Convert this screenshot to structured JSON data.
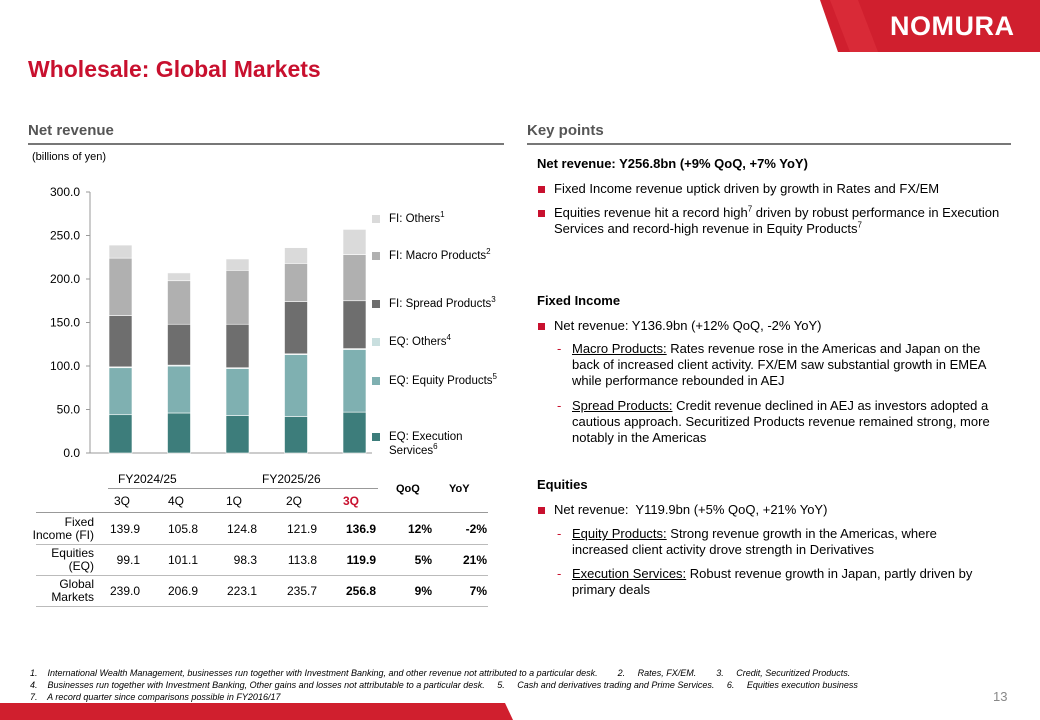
{
  "brand": {
    "logo_text": "NOMURA",
    "accent": "#c8102e"
  },
  "title": "Wholesale: Global Markets",
  "left": {
    "heading": "Net revenue",
    "units": "(billions of yen)"
  },
  "chart_data": {
    "type": "bar",
    "stacked": true,
    "categories": [
      "3Q FY2024/25",
      "4Q FY2024/25",
      "1Q FY2025/26",
      "2Q FY2025/26",
      "3Q FY2025/26"
    ],
    "ylim": [
      0,
      300
    ],
    "yticks": [
      "300.0",
      "250.0",
      "200.0",
      "150.0",
      "100.0",
      "50.0",
      "0.0"
    ],
    "series": [
      {
        "name": "EQ: Execution Services",
        "sup": "6",
        "color": "#3d7d7b",
        "values": [
          44,
          46,
          43,
          42,
          47
        ]
      },
      {
        "name": "EQ: Equity Products",
        "sup": "5",
        "color": "#7fb0b1",
        "values": [
          54,
          54,
          54,
          71,
          72
        ]
      },
      {
        "name": "EQ: Others",
        "sup": "4",
        "color": "#c9dfdf",
        "values": [
          1,
          1,
          1,
          1,
          1
        ]
      },
      {
        "name": "FI: Spread Products",
        "sup": "3",
        "color": "#6e6e6e",
        "values": [
          59,
          47,
          50,
          60,
          55
        ]
      },
      {
        "name": "FI: Macro Products",
        "sup": "2",
        "color": "#b0b0b0",
        "values": [
          66,
          50,
          62,
          44,
          53
        ]
      },
      {
        "name": "FI: Others",
        "sup": "1",
        "color": "#dadada",
        "values": [
          15,
          9,
          13,
          18,
          29
        ]
      }
    ]
  },
  "table": {
    "year_labels": [
      "FY2024/25",
      "FY2025/26"
    ],
    "quarters": [
      "3Q",
      "4Q",
      "1Q",
      "2Q",
      "3Q"
    ],
    "qoq": "QoQ",
    "yoy": "YoY",
    "rows": [
      {
        "label1": "Fixed",
        "label2": "Income (FI)",
        "vals": [
          "139.9",
          "105.8",
          "124.8",
          "121.9",
          "136.9"
        ],
        "qoq": "12%",
        "yoy": "-2%"
      },
      {
        "label1": "Equities",
        "label2": "(EQ)",
        "vals": [
          "99.1",
          "101.1",
          "98.3",
          "113.8",
          "119.9"
        ],
        "qoq": "5%",
        "yoy": "21%"
      },
      {
        "label1": "Global",
        "label2": "Markets",
        "vals": [
          "239.0",
          "206.9",
          "223.1",
          "235.7",
          "256.8"
        ],
        "qoq": "9%",
        "yoy": "7%"
      }
    ]
  },
  "right": {
    "heading": "Key points",
    "net_revenue": "Net revenue: Y256.8bn (+9% QoQ, +7% YoY)",
    "nr_b1": "Fixed Income revenue uptick driven by growth in Rates and FX/EM",
    "nr_b2a": "Equities revenue hit a record high",
    "nr_b2_sup": "7",
    "nr_b2b": " driven by robust performance in Execution",
    "nr_b2c": "Services and record-high revenue in Equity Products",
    "nr_b2c_sup": "7",
    "fi_title": "Fixed Income",
    "fi_b1": "Net revenue: Y136.9bn (+12% QoQ, -2% YoY)",
    "fi_s1_u": "Macro Products:",
    "fi_s1_t1": " Rates revenue rose in the Americas and Japan on the",
    "fi_s1_t2": "back of increased client activity. FX/EM saw substantial growth in EMEA",
    "fi_s1_t3": "while performance rebounded in AEJ",
    "fi_s2_u": "Spread Products:",
    "fi_s2_t1": " Credit revenue declined in AEJ as investors adopted a",
    "fi_s2_t2": "cautious approach. Securitized Products revenue remained strong, more",
    "fi_s2_t3": "notably in the Americas",
    "eq_title": "Equities",
    "eq_b1": "Net revenue:  Y119.9bn (+5% QoQ, +21% YoY)",
    "eq_s1_u": "Equity Products:",
    "eq_s1_t1": " Strong revenue growth in the Americas, where",
    "eq_s1_t2": "increased client activity drove strength in Derivatives",
    "eq_s2_u": "Execution Services:",
    "eq_s2_t1": " Robust revenue growth in Japan, partly driven by",
    "eq_s2_t2": "primary deals"
  },
  "footnotes": {
    "line1": "1.    International Wealth Management, businesses run together with Investment Banking, and other revenue not attributed to a particular desk.        2.     Rates, FX/EM.        3.     Credit, Securitized Products.",
    "line2": "4.    Businesses run together with Investment Banking, Other gains and losses not attributable to a particular desk.     5.     Cash and derivatives trading and Prime Services.     6.     Equities execution business",
    "line3": "7.    A record quarter since comparisons possible in FY2016/17"
  },
  "page_number": "13"
}
